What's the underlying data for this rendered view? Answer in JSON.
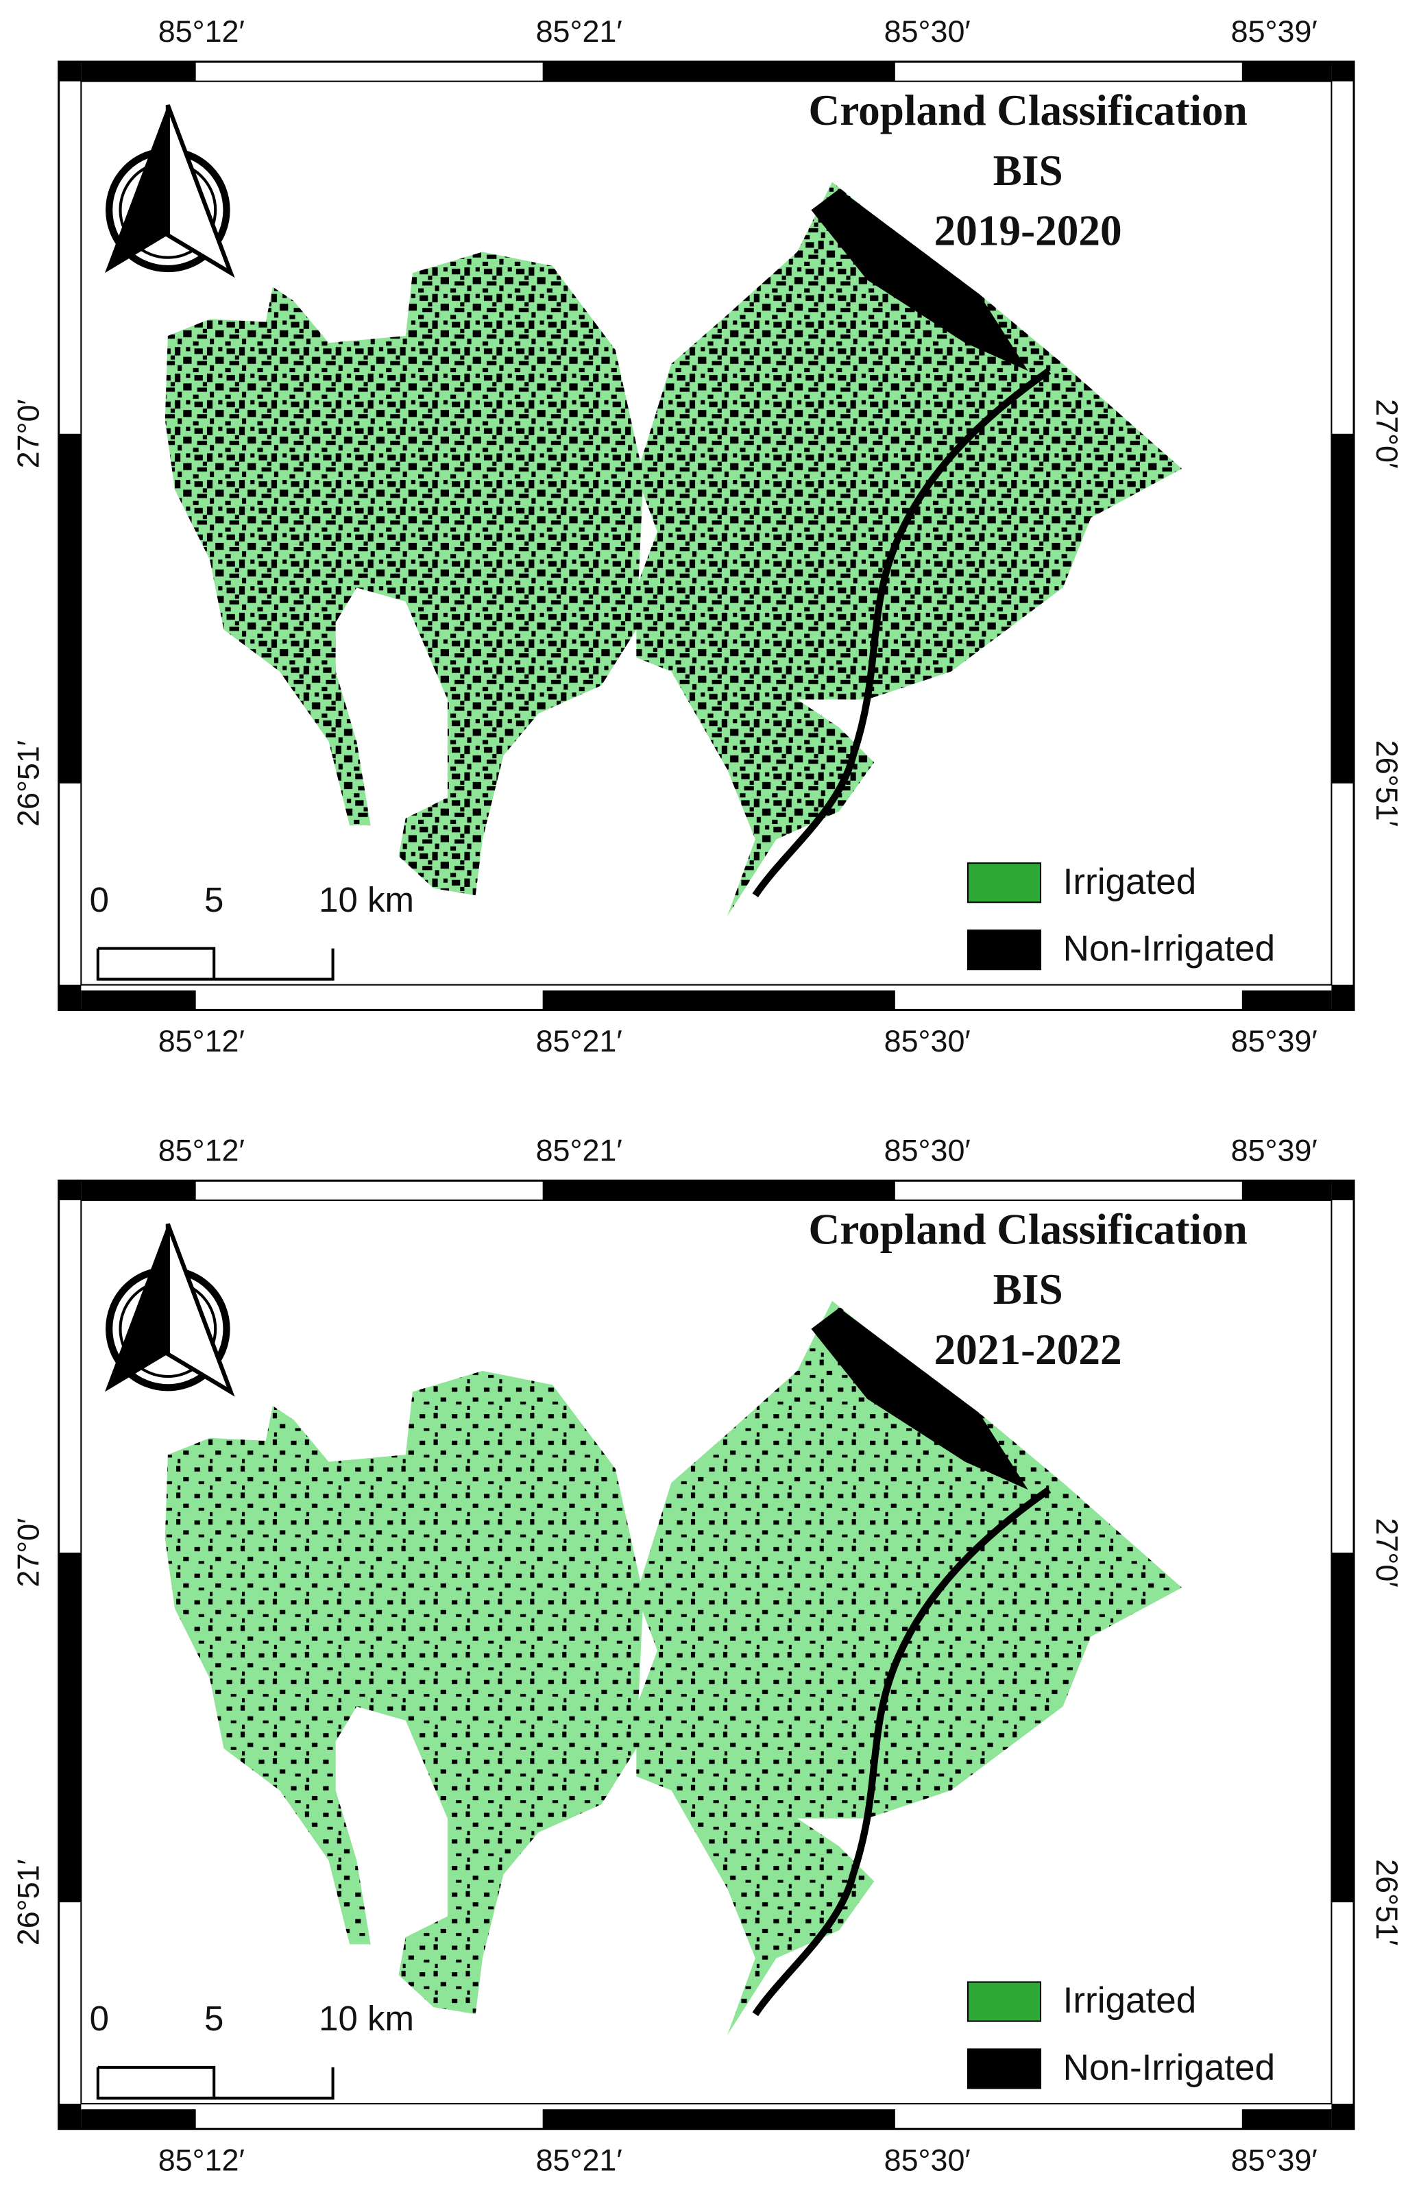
{
  "maps": [
    {
      "title": [
        "Cropland Classification",
        "BIS",
        "2019-2020"
      ],
      "longitude_labels": [
        "85°12′",
        "85°21′",
        "85°30′",
        "85°39′"
      ],
      "latitude_labels": [
        "27°0′",
        "26°51′"
      ],
      "scale_bar": [
        "0",
        "5",
        "10 km"
      ],
      "legend": [
        {
          "label": "Irrigated",
          "color": "#7fe08a"
        },
        {
          "label": "Non-Irrigated",
          "color": "#000000"
        }
      ]
    },
    {
      "title": [
        "Cropland Classification",
        "BIS",
        "2021-2022"
      ],
      "longitude_labels": [
        "85°12′",
        "85°21′",
        "85°30′",
        "85°39′"
      ],
      "latitude_labels": [
        "27°0′",
        "26°51′"
      ],
      "scale_bar": [
        "0",
        "5",
        "10 km"
      ],
      "legend": [
        {
          "label": "Irrigated",
          "color": "#7fe08a"
        },
        {
          "label": "Non-Irrigated",
          "color": "#000000"
        }
      ]
    }
  ]
}
